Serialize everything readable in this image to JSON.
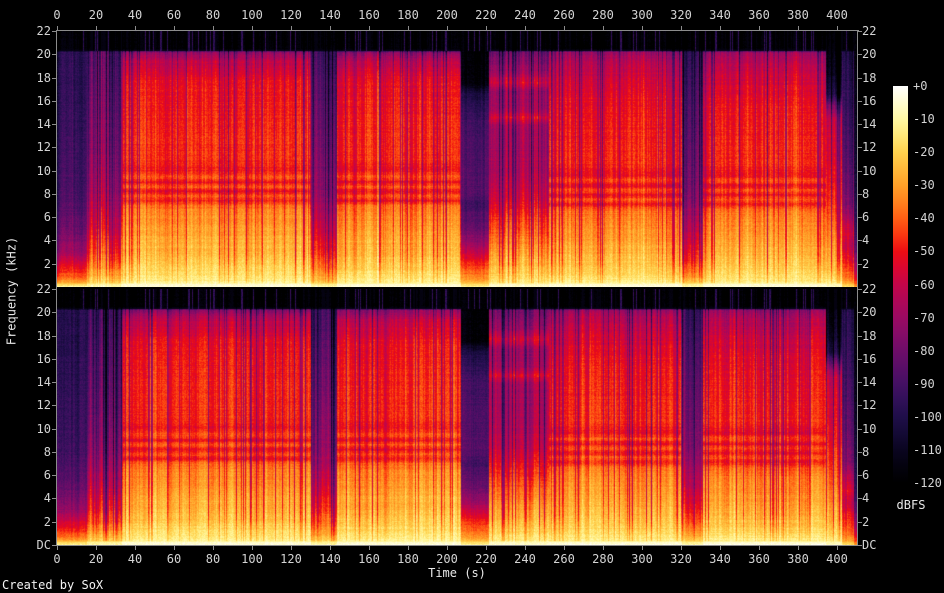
{
  "figure": {
    "credit": "Created by SoX",
    "xlabel": "Time (s)",
    "ylabel": "Frequency (kHz)",
    "colorbar_label": "dBFS"
  },
  "chart_data": {
    "type": "heatmap",
    "subtype": "audio-spectrogram",
    "channels": 2,
    "title": "",
    "xlabel": "Time (s)",
    "ylabel": "Frequency (kHz)",
    "x_range_s": [
      0,
      410
    ],
    "x_ticks": [
      0,
      20,
      40,
      60,
      80,
      100,
      120,
      140,
      160,
      180,
      200,
      220,
      240,
      260,
      280,
      300,
      320,
      340,
      360,
      380,
      400
    ],
    "y_range_khz": [
      0,
      22
    ],
    "y_tick_labels_top_panel": [
      "22",
      "20",
      "18",
      "16",
      "14",
      "12",
      "10",
      "8",
      "6",
      "4",
      "2"
    ],
    "y_tick_labels_bottom_panel": [
      "22",
      "20",
      "18",
      "16",
      "14",
      "12",
      "10",
      "8",
      "6",
      "4",
      "2",
      "DC"
    ],
    "colorbar": {
      "label": "dBFS",
      "range_db": [
        0,
        -120
      ],
      "tick_labels": [
        "+0",
        "-10",
        "-20",
        "-30",
        "-40",
        "-50",
        "-60",
        "-70",
        "-80",
        "-90",
        "-100",
        "-110",
        "-120"
      ]
    },
    "hf_cutoff_khz": 20.35,
    "palette_dbfs_colors": [
      [
        0,
        "#ffffff"
      ],
      [
        -5,
        "#fffcd1"
      ],
      [
        -10,
        "#fff8a3"
      ],
      [
        -15,
        "#ffe878"
      ],
      [
        -20,
        "#ffd24e"
      ],
      [
        -25,
        "#ffb93a"
      ],
      [
        -30,
        "#ffa028"
      ],
      [
        -35,
        "#ff821e"
      ],
      [
        -40,
        "#ff5e14"
      ],
      [
        -45,
        "#f93711"
      ],
      [
        -50,
        "#ec0d13"
      ],
      [
        -55,
        "#da0630"
      ],
      [
        -60,
        "#c30549"
      ],
      [
        -65,
        "#ae0757"
      ],
      [
        -70,
        "#9a0a62"
      ],
      [
        -75,
        "#850c67"
      ],
      [
        -80,
        "#6e0d68"
      ],
      [
        -85,
        "#590e67"
      ],
      [
        -90,
        "#441063"
      ],
      [
        -95,
        "#301058"
      ],
      [
        -100,
        "#1f0e49"
      ],
      [
        -105,
        "#140a35"
      ],
      [
        -110,
        "#0a0520"
      ],
      [
        -115,
        "#04020e"
      ],
      [
        -120,
        "#000000"
      ]
    ],
    "profiles": {
      "intro": [
        [
          22,
          -120
        ],
        [
          20.5,
          -120
        ],
        [
          20.2,
          -99
        ],
        [
          16,
          -97
        ],
        [
          12,
          -94
        ],
        [
          8,
          -91
        ],
        [
          5,
          -83
        ],
        [
          3,
          -71
        ],
        [
          2,
          -57
        ],
        [
          1.2,
          -47
        ],
        [
          0.6,
          -37
        ],
        [
          0.25,
          -26
        ],
        [
          0.05,
          -16
        ],
        [
          0,
          -11
        ]
      ],
      "buildup": [
        [
          22,
          -120
        ],
        [
          20.5,
          -120
        ],
        [
          20.2,
          -90
        ],
        [
          16,
          -84
        ],
        [
          12,
          -79
        ],
        [
          8,
          -71
        ],
        [
          5,
          -59
        ],
        [
          3,
          -47
        ],
        [
          2,
          -39
        ],
        [
          1,
          -29
        ],
        [
          0.4,
          -20
        ],
        [
          0.1,
          -13
        ],
        [
          0,
          -9
        ]
      ],
      "loud_a": [
        [
          22,
          -120
        ],
        [
          20.5,
          -120
        ],
        [
          20.2,
          -74
        ],
        [
          19.4,
          -62
        ],
        [
          17.5,
          -52
        ],
        [
          14,
          -48
        ],
        [
          11,
          -47
        ],
        [
          10,
          -51
        ],
        [
          9.4,
          -42
        ],
        [
          9.0,
          -53
        ],
        [
          8.6,
          -41
        ],
        [
          8.2,
          -53
        ],
        [
          7.8,
          -41
        ],
        [
          7.4,
          -51
        ],
        [
          7.0,
          -39
        ],
        [
          6.4,
          -35
        ],
        [
          5.2,
          -32
        ],
        [
          4,
          -28
        ],
        [
          3,
          -26
        ],
        [
          2,
          -22
        ],
        [
          1.2,
          -18
        ],
        [
          0.5,
          -14
        ],
        [
          0.15,
          -10
        ],
        [
          0,
          -6
        ]
      ],
      "quiet_band": [
        [
          22,
          -120
        ],
        [
          20.5,
          -120
        ],
        [
          20.2,
          -96
        ],
        [
          16,
          -88
        ],
        [
          12,
          -82
        ],
        [
          8,
          -76
        ],
        [
          5,
          -62
        ],
        [
          3,
          -51
        ],
        [
          2,
          -43
        ],
        [
          1,
          -33
        ],
        [
          0.4,
          -23
        ],
        [
          0.1,
          -14
        ],
        [
          0,
          -9
        ]
      ],
      "bridge": [
        [
          22,
          -120
        ],
        [
          17.6,
          -117
        ],
        [
          16.6,
          -101
        ],
        [
          14,
          -90
        ],
        [
          11,
          -87
        ],
        [
          8,
          -85
        ],
        [
          7,
          -91
        ],
        [
          6.4,
          -86
        ],
        [
          5,
          -81
        ],
        [
          3.8,
          -70
        ],
        [
          2.8,
          -57
        ],
        [
          2,
          -47
        ],
        [
          1.2,
          -38
        ],
        [
          0.6,
          -30
        ],
        [
          0.2,
          -23
        ],
        [
          0.05,
          -16
        ],
        [
          0,
          -11
        ]
      ],
      "pink": [
        [
          22,
          -120
        ],
        [
          20.5,
          -120
        ],
        [
          20.2,
          -81
        ],
        [
          18.6,
          -71
        ],
        [
          17.6,
          -57
        ],
        [
          16.8,
          -71
        ],
        [
          15.3,
          -68
        ],
        [
          14.6,
          -56
        ],
        [
          13.8,
          -69
        ],
        [
          12,
          -68
        ],
        [
          10,
          -66
        ],
        [
          8,
          -60
        ],
        [
          6,
          -48
        ],
        [
          4.5,
          -40
        ],
        [
          3,
          -32
        ],
        [
          2,
          -26
        ],
        [
          1,
          -20
        ],
        [
          0.4,
          -14
        ],
        [
          0.1,
          -9
        ],
        [
          0,
          -6
        ]
      ],
      "loud_b": [
        [
          22,
          -120
        ],
        [
          20.5,
          -120
        ],
        [
          20.2,
          -70
        ],
        [
          19.5,
          -64
        ],
        [
          18,
          -58
        ],
        [
          16,
          -52
        ],
        [
          13,
          -49
        ],
        [
          10.6,
          -47
        ],
        [
          9.6,
          -53
        ],
        [
          9.1,
          -42
        ],
        [
          8.7,
          -54
        ],
        [
          8.3,
          -42
        ],
        [
          7.9,
          -52
        ],
        [
          7.5,
          -42
        ],
        [
          7.1,
          -50
        ],
        [
          6.6,
          -38
        ],
        [
          5.5,
          -34
        ],
        [
          4,
          -30
        ],
        [
          2.8,
          -26
        ],
        [
          1.8,
          -22
        ],
        [
          1,
          -18
        ],
        [
          0.4,
          -13
        ],
        [
          0.1,
          -9
        ],
        [
          0,
          -5
        ]
      ],
      "ending": [
        [
          22,
          -120
        ],
        [
          20.8,
          -118
        ],
        [
          18.5,
          -112
        ],
        [
          16.6,
          -101
        ],
        [
          15.5,
          -77
        ],
        [
          14.5,
          -62
        ],
        [
          13,
          -58
        ],
        [
          11,
          -56
        ],
        [
          9,
          -52
        ],
        [
          7,
          -46
        ],
        [
          5.5,
          -40
        ],
        [
          4,
          -34
        ],
        [
          2.5,
          -28
        ],
        [
          1.5,
          -24
        ],
        [
          0.7,
          -18
        ],
        [
          0.2,
          -12
        ],
        [
          0,
          -8
        ]
      ],
      "outro": [
        [
          22,
          -120
        ],
        [
          20.5,
          -120
        ],
        [
          20.2,
          -101
        ],
        [
          16,
          -95
        ],
        [
          12,
          -88
        ],
        [
          9,
          -82
        ],
        [
          7,
          -76
        ],
        [
          5.5,
          -62
        ],
        [
          4.5,
          -56
        ],
        [
          3.5,
          -60
        ],
        [
          2.5,
          -52
        ],
        [
          1.8,
          -46
        ],
        [
          1,
          -40
        ],
        [
          0.5,
          -33
        ],
        [
          0.15,
          -26
        ],
        [
          0,
          -18
        ]
      ],
      "final": [
        [
          22,
          -120
        ],
        [
          18,
          -116
        ],
        [
          12,
          -110
        ],
        [
          8,
          -104
        ],
        [
          5,
          -96
        ],
        [
          3,
          -84
        ],
        [
          1.5,
          -68
        ],
        [
          0.7,
          -52
        ],
        [
          0.25,
          -42
        ],
        [
          0,
          -30
        ]
      ]
    },
    "segments": [
      {
        "t0": 0,
        "t1": 15,
        "profile": "intro",
        "stripe": 6,
        "lines": false,
        "dc": -18
      },
      {
        "t0": 15,
        "t1": 33,
        "profile": "buildup",
        "stripe": 16,
        "lines": true,
        "dc": -11
      },
      {
        "t0": 33,
        "t1": 130,
        "profile": "loud_a",
        "stripe": 7,
        "lines": true,
        "dc": -5
      },
      {
        "t0": 130,
        "t1": 143,
        "profile": "quiet_band",
        "stripe": 12,
        "lines": true,
        "dc": -12
      },
      {
        "t0": 143,
        "t1": 207,
        "profile": "loud_a",
        "stripe": 8,
        "lines": true,
        "dc": -5
      },
      {
        "t0": 207,
        "t1": 221,
        "profile": "bridge",
        "stripe": 5,
        "lines": false,
        "dc": -16
      },
      {
        "t0": 221,
        "t1": 252,
        "profile": "pink",
        "stripe": 11,
        "lines": true,
        "dc": -7
      },
      {
        "t0": 252,
        "t1": 320,
        "profile": "loud_b",
        "stripe": 8,
        "lines": true,
        "dc": -5
      },
      {
        "t0": 320,
        "t1": 331,
        "profile": "quiet_band",
        "stripe": 12,
        "lines": true,
        "dc": -12
      },
      {
        "t0": 331,
        "t1": 394,
        "profile": "loud_b",
        "stripe": 8,
        "lines": true,
        "dc": -5
      },
      {
        "t0": 394,
        "t1": 402,
        "profile": "ending",
        "stripe": 9,
        "lines": true,
        "dc": -8
      },
      {
        "t0": 402,
        "t1": 408,
        "profile": "outro",
        "stripe": 8,
        "lines": false,
        "dc": -22
      },
      {
        "t0": 408,
        "t1": 410,
        "profile": "final",
        "stripe": 4,
        "lines": false,
        "dc": -40
      }
    ]
  }
}
